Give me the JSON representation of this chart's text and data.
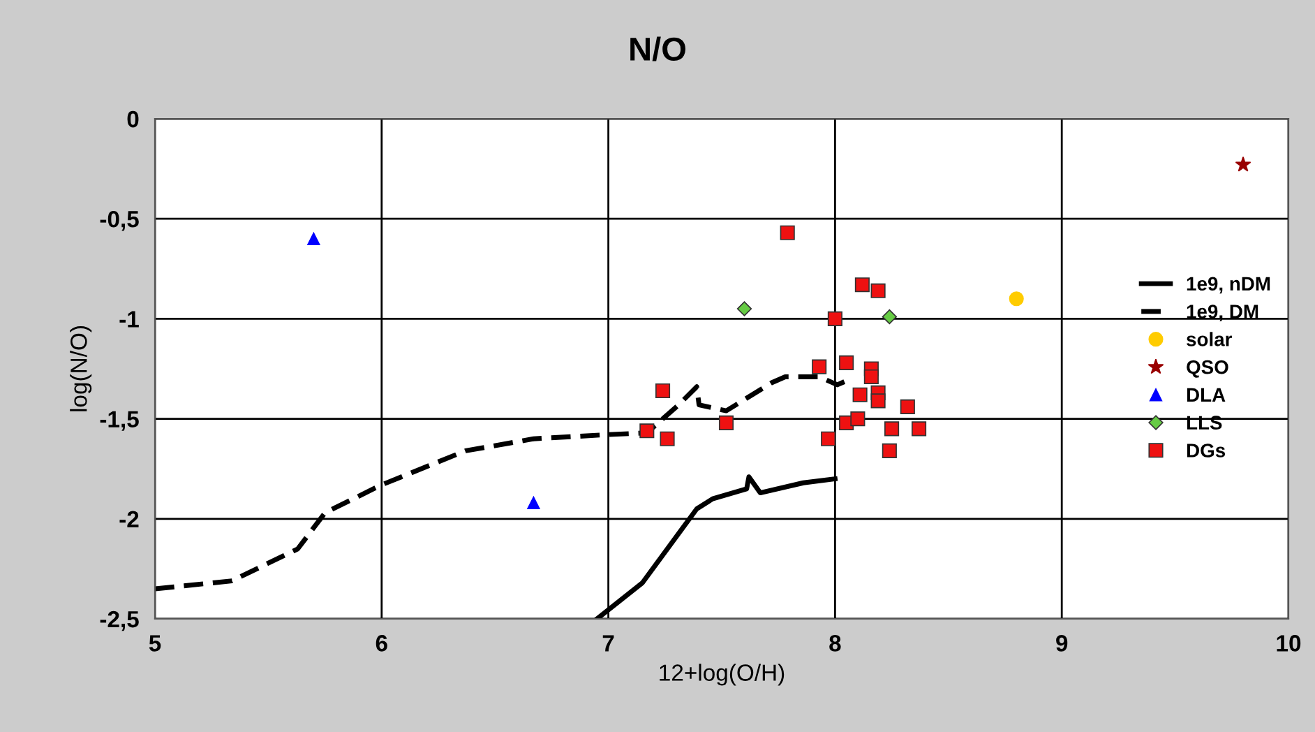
{
  "chart_data": {
    "type": "scatter",
    "title": "N/O",
    "xlabel": "12+log(O/H)",
    "ylabel": "log(N/O)",
    "xlim": [
      5,
      10
    ],
    "xticks": [
      5,
      6,
      7,
      8,
      9,
      10
    ],
    "ylim": [
      -2.5,
      0
    ],
    "yticks": [
      {
        "value": -2.5,
        "label": "-2,5"
      },
      {
        "value": -2,
        "label": "-2"
      },
      {
        "value": -1.5,
        "label": "-1,5"
      },
      {
        "value": -1,
        "label": "-1"
      },
      {
        "value": -0.5,
        "label": "-0,5"
      },
      {
        "value": 0,
        "label": "0"
      }
    ],
    "grid": true,
    "legend": "right",
    "series": [
      {
        "name": "1e9, nDM",
        "type": "line",
        "line_style": "solid",
        "marker": "none",
        "color": "#000000",
        "x": [
          6.95,
          7.15,
          7.39,
          7.46,
          7.61,
          7.62,
          7.67,
          7.86,
          8.0
        ],
        "values": [
          -2.5,
          -2.32,
          -1.95,
          -1.9,
          -1.85,
          -1.79,
          -1.87,
          -1.82,
          -1.8
        ]
      },
      {
        "name": "1e9, DM",
        "type": "line",
        "line_style": "dashed",
        "marker": "none",
        "color": "#000000",
        "x": [
          5.0,
          5.34,
          5.63,
          5.75,
          6.0,
          6.37,
          6.67,
          6.98,
          7.17,
          7.31,
          7.39,
          7.4,
          7.52,
          7.72,
          7.78,
          7.93,
          8.01,
          8.05
        ],
        "values": [
          -2.35,
          -2.31,
          -2.15,
          -1.97,
          -1.83,
          -1.66,
          -1.6,
          -1.58,
          -1.57,
          -1.43,
          -1.34,
          -1.43,
          -1.46,
          -1.32,
          -1.29,
          -1.29,
          -1.33,
          -1.31
        ]
      },
      {
        "name": "solar",
        "marker": "circle",
        "color": "#ffcc00",
        "x": [
          8.8
        ],
        "values": [
          -0.9
        ]
      },
      {
        "name": "QSO",
        "marker": "star",
        "color": "#990000",
        "x": [
          9.8
        ],
        "values": [
          -0.23
        ]
      },
      {
        "name": "DLA",
        "marker": "triangle",
        "color": "#0000ff",
        "x": [
          5.7,
          6.67
        ],
        "values": [
          -0.6,
          -1.92
        ]
      },
      {
        "name": "LLS",
        "marker": "diamond",
        "color": "#66cc44",
        "x": [
          7.6,
          8.24
        ],
        "values": [
          -0.95,
          -0.99
        ]
      },
      {
        "name": "DGs",
        "marker": "square",
        "color": "#ee1111",
        "x": [
          7.79,
          8.12,
          8.19,
          8.0,
          7.93,
          8.05,
          8.16,
          8.16,
          8.11,
          8.19,
          8.19,
          8.32,
          7.24,
          7.17,
          7.26,
          7.52,
          8.05,
          8.1,
          7.97,
          8.25,
          8.37,
          8.24
        ],
        "values": [
          -0.57,
          -0.83,
          -0.86,
          -1.0,
          -1.24,
          -1.22,
          -1.25,
          -1.29,
          -1.38,
          -1.37,
          -1.41,
          -1.44,
          -1.36,
          -1.56,
          -1.6,
          -1.52,
          -1.52,
          -1.5,
          -1.6,
          -1.55,
          -1.55,
          -1.66
        ]
      }
    ]
  }
}
